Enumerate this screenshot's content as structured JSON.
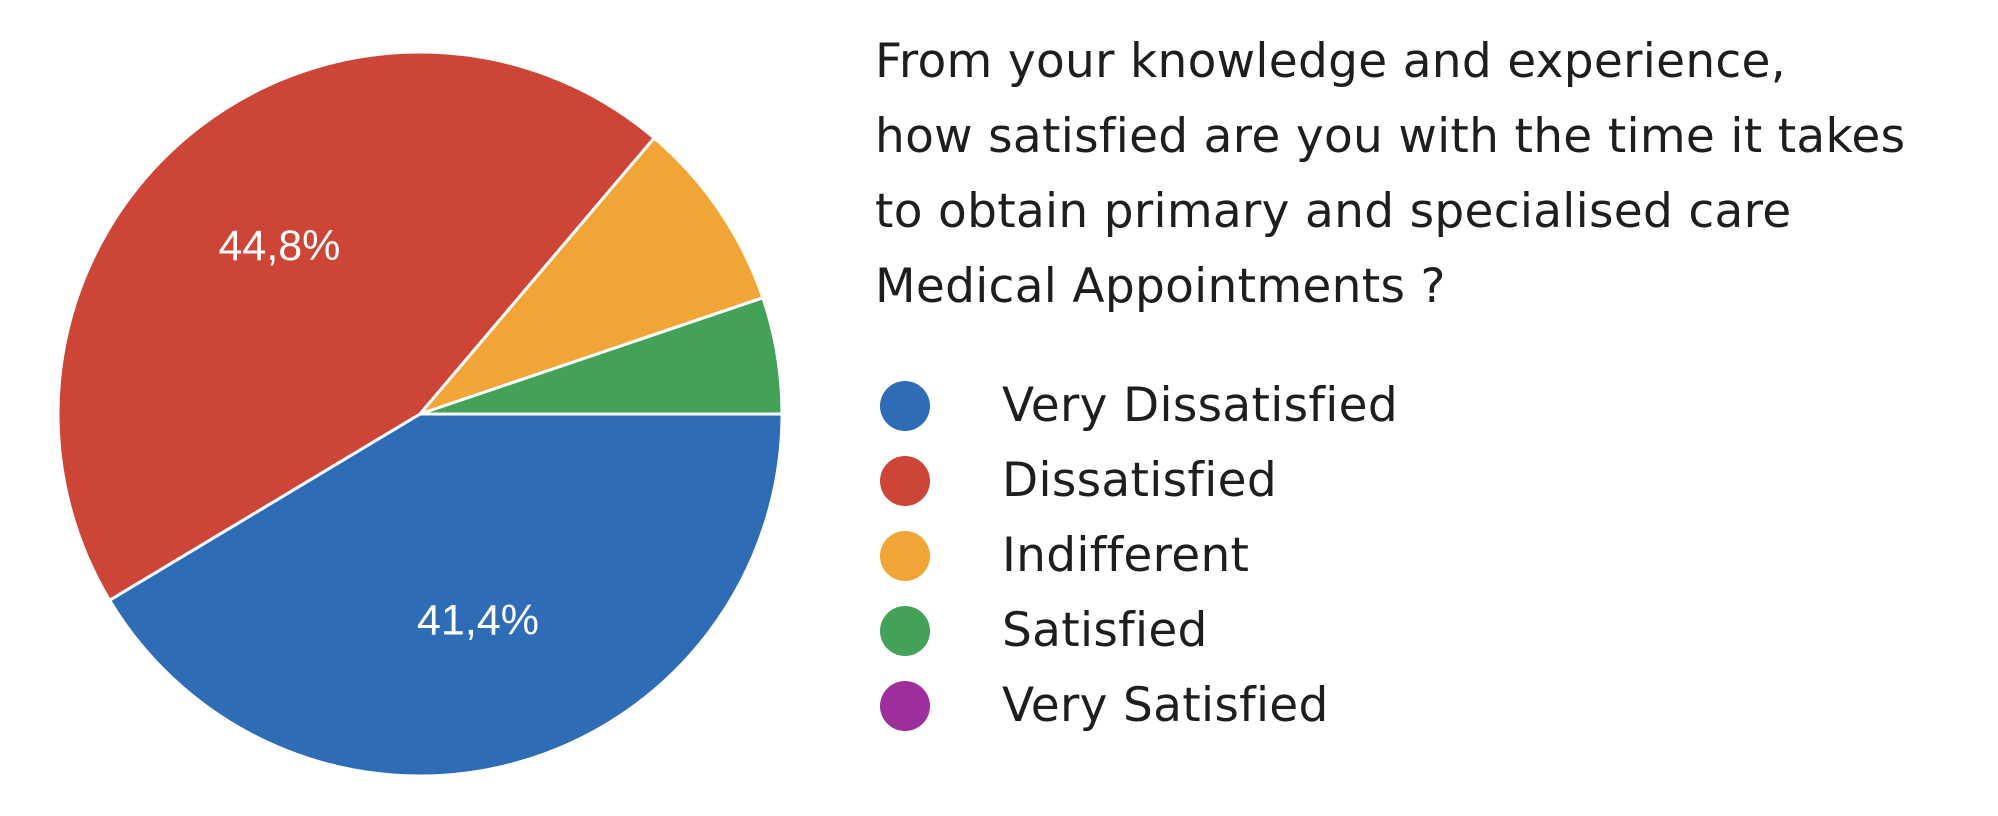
{
  "chart_data": {
    "type": "pie",
    "title_lines": [
      "From your knowledge and experience,",
      "how satisfied are you with the time it takes",
      "to obtain primary and specialised care",
      "Medical Appointments ?"
    ],
    "categories": [
      "Very Dissatisfied",
      "Dissatisfied",
      "Indifferent",
      "Satisfied",
      "Very Satisfied"
    ],
    "values": [
      41.4,
      44.8,
      8.6,
      5.2,
      0
    ],
    "colors": [
      "#2e6db5",
      "#cc4536",
      "#f2a537",
      "#43a158",
      "#9c2f9c"
    ],
    "data_labels": [
      "41,4%",
      "44,8%",
      "",
      "",
      ""
    ],
    "legend_position": "right"
  }
}
